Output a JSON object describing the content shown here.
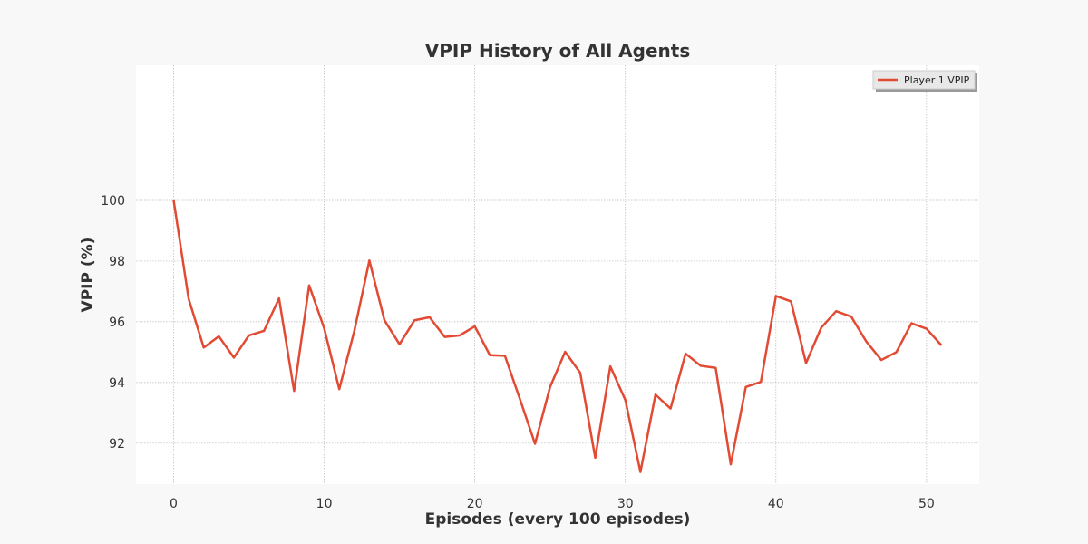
{
  "chart_data": {
    "type": "line",
    "title": "VPIP History of All Agents",
    "xlabel": "Episodes (every 100 episodes)",
    "ylabel": "VPIP (%)",
    "xlim": [
      -2.5,
      53.5
    ],
    "ylim": [
      90.65,
      104.45
    ],
    "xticks": [
      0,
      10,
      20,
      30,
      40,
      50
    ],
    "yticks": [
      92,
      94,
      96,
      98,
      100
    ],
    "grid": true,
    "legend_position": "top-right",
    "x": [
      0,
      1,
      2,
      3,
      4,
      5,
      6,
      7,
      8,
      9,
      10,
      11,
      12,
      13,
      14,
      15,
      16,
      17,
      18,
      19,
      20,
      21,
      22,
      23,
      24,
      25,
      26,
      27,
      28,
      29,
      30,
      31,
      32,
      33,
      34,
      35,
      36,
      37,
      38,
      39,
      40,
      41,
      42,
      43,
      44,
      45,
      46,
      47,
      48,
      49,
      50,
      51
    ],
    "series": [
      {
        "name": "Player 1 VPIP",
        "color": "#e24a33",
        "values": [
          100.0,
          96.75,
          95.15,
          95.52,
          94.82,
          95.55,
          95.7,
          96.77,
          93.72,
          97.2,
          95.78,
          93.78,
          95.7,
          98.02,
          96.05,
          95.26,
          96.05,
          96.15,
          95.5,
          95.55,
          95.85,
          94.9,
          94.88,
          93.45,
          91.98,
          93.85,
          95.01,
          94.32,
          91.52,
          94.53,
          93.42,
          91.05,
          93.6,
          93.14,
          94.95,
          94.55,
          94.48,
          91.3,
          93.85,
          94.02,
          96.85,
          96.67,
          94.64,
          95.8,
          96.35,
          96.17,
          95.35,
          94.74,
          95.0,
          95.95,
          95.77,
          95.22
        ]
      }
    ]
  }
}
